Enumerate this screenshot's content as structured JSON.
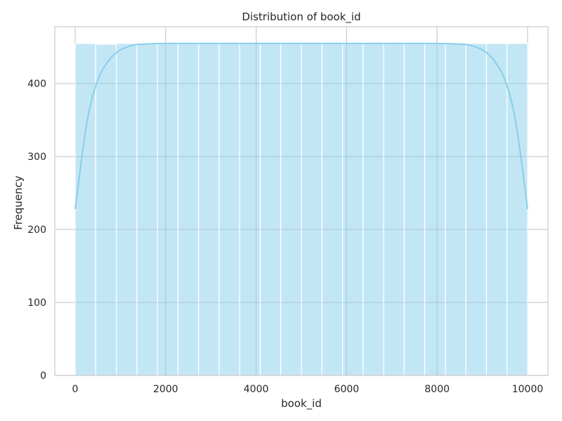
{
  "chart_data": {
    "type": "bar",
    "title": "Distribution of book_id",
    "xlabel": "book_id",
    "ylabel": "Frequency",
    "xlim": [
      -450,
      10450
    ],
    "ylim": [
      0,
      478
    ],
    "xticks": [
      0,
      2000,
      4000,
      6000,
      8000,
      10000
    ],
    "yticks": [
      0,
      100,
      200,
      300,
      400
    ],
    "grid": true,
    "bin_edges": [
      1,
      455.5,
      910,
      1364.5,
      1819,
      2273.5,
      2728,
      3182.5,
      3637,
      4091.5,
      4546,
      5000.5,
      5455,
      5909.5,
      6364,
      6818.5,
      7273,
      7727.5,
      8182,
      8636.5,
      9091,
      9545.5,
      10000
    ],
    "values": [
      455,
      454,
      455,
      455,
      455,
      455,
      455,
      455,
      455,
      455,
      455,
      455,
      455,
      455,
      455,
      455,
      455,
      455,
      455,
      455,
      455,
      455
    ],
    "kde": {
      "x": [
        1,
        150,
        300,
        500,
        700,
        900,
        1100,
        1300,
        1500,
        2000,
        3000,
        4000,
        5000,
        6000,
        7000,
        8000,
        8500,
        8700,
        8900,
        9100,
        9300,
        9500,
        9700,
        9850,
        10000
      ],
      "y": [
        228,
        300,
        360,
        405,
        428,
        442,
        449,
        453,
        454,
        455,
        455,
        455,
        455,
        455,
        455,
        455,
        454,
        453,
        449,
        442,
        428,
        405,
        360,
        300,
        228
      ]
    },
    "colors": {
      "bar_fill": "#87ceeb",
      "kde_line": "#87ceeb",
      "grid": "#cccccc",
      "background": "#ffffff"
    }
  }
}
